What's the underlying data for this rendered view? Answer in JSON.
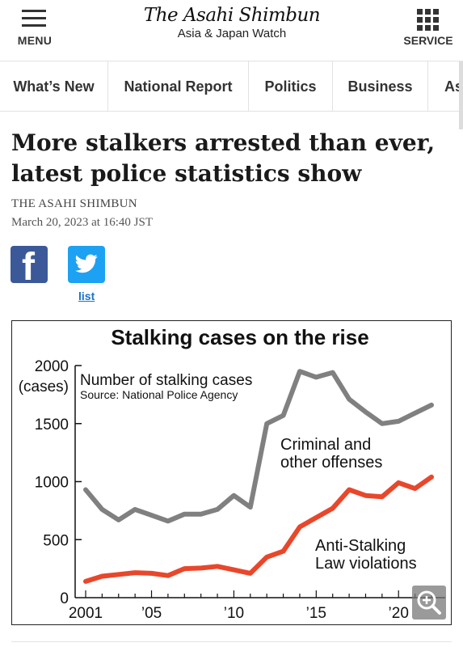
{
  "header": {
    "menu_label": "MENU",
    "brand_name": "The Asahi Shimbun",
    "brand_sub": "Asia & Japan Watch",
    "service_label": "SERVICE"
  },
  "nav": {
    "items": [
      "What’s New",
      "National Report",
      "Politics",
      "Business",
      "As"
    ]
  },
  "article": {
    "headline": "More stalkers arrested than ever, latest police statistics show",
    "byline": "THE ASAHI SHIMBUN",
    "date": "March 20, 2023 at 16:40 JST",
    "share": {
      "facebook_icon": "facebook-icon",
      "twitter_icon": "twitter-icon",
      "list_label": "list"
    }
  },
  "chart_data": {
    "type": "line",
    "title": "Stalking cases on the rise",
    "subtitle": "Number of stalking cases",
    "source": "Source: National Police Agency",
    "ylabel_top": "2000",
    "yunit": "(cases)",
    "ylim": [
      0,
      2000
    ],
    "yticks": [
      "0",
      "500",
      "1000",
      "1500"
    ],
    "xticks": [
      "2001",
      "’05",
      "’10",
      "’15",
      "’20"
    ],
    "xtick_years": [
      2001,
      2005,
      2010,
      2015,
      2020
    ],
    "grid": false,
    "x": [
      2001,
      2002,
      2003,
      2004,
      2005,
      2006,
      2007,
      2008,
      2009,
      2010,
      2011,
      2012,
      2013,
      2014,
      2015,
      2016,
      2017,
      2018,
      2019,
      2020,
      2021,
      2022
    ],
    "series": [
      {
        "name": "Criminal and other offenses",
        "label_lines": [
          "Criminal and",
          "other offenses"
        ],
        "color": "#808080",
        "values": [
          930,
          760,
          670,
          760,
          710,
          660,
          720,
          720,
          760,
          880,
          780,
          1500,
          1570,
          1950,
          1900,
          1940,
          1710,
          1600,
          1500,
          1520,
          1590,
          1660
        ]
      },
      {
        "name": "Anti-Stalking Law violations",
        "label_lines": [
          "Anti-Stalking",
          "Law violations"
        ],
        "color": "#e8472b",
        "values": [
          140,
          185,
          200,
          215,
          210,
          190,
          250,
          255,
          270,
          240,
          210,
          350,
          400,
          610,
          690,
          770,
          930,
          880,
          870,
          990,
          940,
          1040
        ]
      }
    ]
  },
  "zoom": {
    "icon": "zoom-in-icon"
  }
}
